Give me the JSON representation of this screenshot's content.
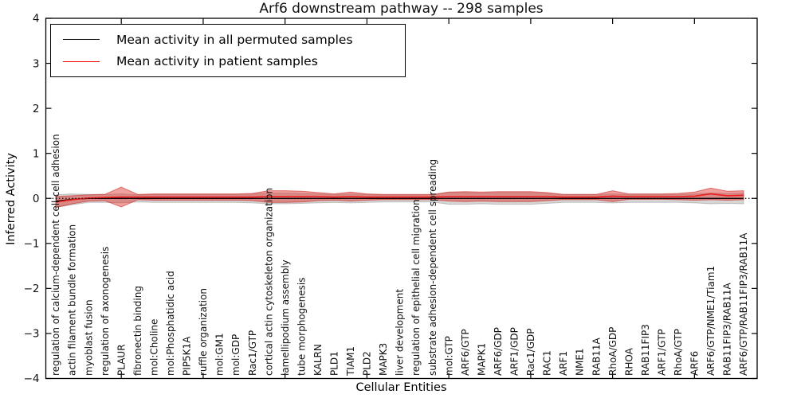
{
  "figure": {
    "background": "#ffffff",
    "frame_color": "#000000"
  },
  "chart_data": {
    "type": "line",
    "title": "Arf6 downstream pathway -- 298 samples",
    "xlabel": "Cellular Entities",
    "ylabel": "Inferred Activity",
    "ylim": [
      -4,
      4
    ],
    "yticks": [
      -4,
      -3,
      -2,
      -1,
      0,
      1,
      2,
      3,
      4
    ],
    "xticks_numeric": [
      5,
      10,
      15,
      20,
      25,
      30,
      35,
      40
    ],
    "grid": false,
    "legend_position": "upper left",
    "legend": [
      {
        "label": "Mean activity in all permuted samples",
        "color": "#000000"
      },
      {
        "label": "Mean activity in patient samples",
        "color": "#ff0000"
      }
    ],
    "categories": [
      "regulation of calcium-dependent cell-cell adhesion",
      "actin filament bundle formation",
      "myoblast fusion",
      "regulation of axonogenesis",
      "PLAUR",
      "fibronectin binding",
      "mol:Choline",
      "mol:Phosphatidic acid",
      "PIP5K1A",
      "ruffle organization",
      "mol:GM1",
      "mol:GDP",
      "Rac1/GTP",
      "cortical actin cytoskeleton organization",
      "lamellipodium assembly",
      "tube morphogenesis",
      "KALRN",
      "PLD1",
      "TIAM1",
      "PLD2",
      "MAPK3",
      "liver development",
      "regulation of epithelial cell migration",
      "substrate adhesion-dependent cell spreading",
      "mol:GTP",
      "ARF6/GTP",
      "MAPK1",
      "ARF6/GDP",
      "ARF1/GDP",
      "Rac1/GDP",
      "RAC1",
      "ARF1",
      "NME1",
      "RAB11A",
      "RhoA/GDP",
      "RHOA",
      "RAB11FIP3",
      "ARF1/GTP",
      "RhoA/GTP",
      "ARF6",
      "ARF6/GTP/NME1/Tiam1",
      "RAB11FIP3/RAB11A",
      "ARF6/GTP/RAB11FIP3/RAB11A"
    ],
    "series": [
      {
        "name": "Mean activity in all permuted samples",
        "color": "#000000",
        "style": "solid",
        "values": [
          -0.06,
          -0.02,
          0,
          0,
          0,
          0,
          0,
          0,
          0,
          0,
          0,
          0,
          0,
          0,
          0,
          0,
          0,
          0,
          0,
          0,
          0,
          0,
          0,
          0,
          0,
          0,
          0,
          0,
          0,
          0,
          0,
          0,
          0,
          0,
          0,
          0,
          0,
          0,
          0,
          0,
          0,
          0,
          0
        ]
      },
      {
        "name": "Mean activity in patient samples",
        "color": "#ee1c1c",
        "style": "solid",
        "values": [
          -0.08,
          -0.03,
          0.01,
          0.02,
          0.03,
          0.03,
          0.03,
          0.03,
          0.03,
          0.03,
          0.03,
          0.03,
          0.03,
          0.04,
          0.04,
          0.04,
          0.04,
          0.03,
          0.04,
          0.03,
          0.03,
          0.03,
          0.03,
          0.03,
          0.04,
          0.04,
          0.04,
          0.04,
          0.04,
          0.04,
          0.04,
          0.03,
          0.03,
          0.03,
          0.05,
          0.04,
          0.04,
          0.04,
          0.04,
          0.05,
          0.1,
          0.06,
          0.07
        ]
      }
    ],
    "bands": [
      {
        "name": "permuted-activity-spread",
        "color": "rgba(128,128,128,0.32)",
        "edge_color": "rgba(110,110,110,0.35)",
        "center_series": 0,
        "half_widths": [
          0.14,
          0.12,
          0.09,
          0.09,
          0.1,
          0.08,
          0.09,
          0.09,
          0.09,
          0.09,
          0.09,
          0.09,
          0.1,
          0.12,
          0.12,
          0.11,
          0.1,
          0.09,
          0.1,
          0.09,
          0.08,
          0.08,
          0.08,
          0.08,
          0.13,
          0.13,
          0.12,
          0.13,
          0.13,
          0.13,
          0.11,
          0.09,
          0.09,
          0.09,
          0.1,
          0.09,
          0.09,
          0.09,
          0.09,
          0.1,
          0.12,
          0.11,
          0.12
        ]
      },
      {
        "name": "patient-activity-spread",
        "color": "rgba(222,45,38,0.45)",
        "edge_color": "rgba(200,30,25,0.55)",
        "center_series": 1,
        "half_widths": [
          0.12,
          0.09,
          0.07,
          0.07,
          0.22,
          0.06,
          0.07,
          0.07,
          0.07,
          0.07,
          0.07,
          0.07,
          0.08,
          0.13,
          0.13,
          0.12,
          0.09,
          0.07,
          0.1,
          0.07,
          0.06,
          0.06,
          0.06,
          0.06,
          0.1,
          0.11,
          0.1,
          0.11,
          0.11,
          0.11,
          0.09,
          0.06,
          0.06,
          0.06,
          0.12,
          0.06,
          0.06,
          0.06,
          0.07,
          0.09,
          0.13,
          0.1,
          0.1
        ]
      }
    ],
    "zero_line": {
      "y": 0,
      "style": "dotted",
      "color": "#000000"
    }
  }
}
